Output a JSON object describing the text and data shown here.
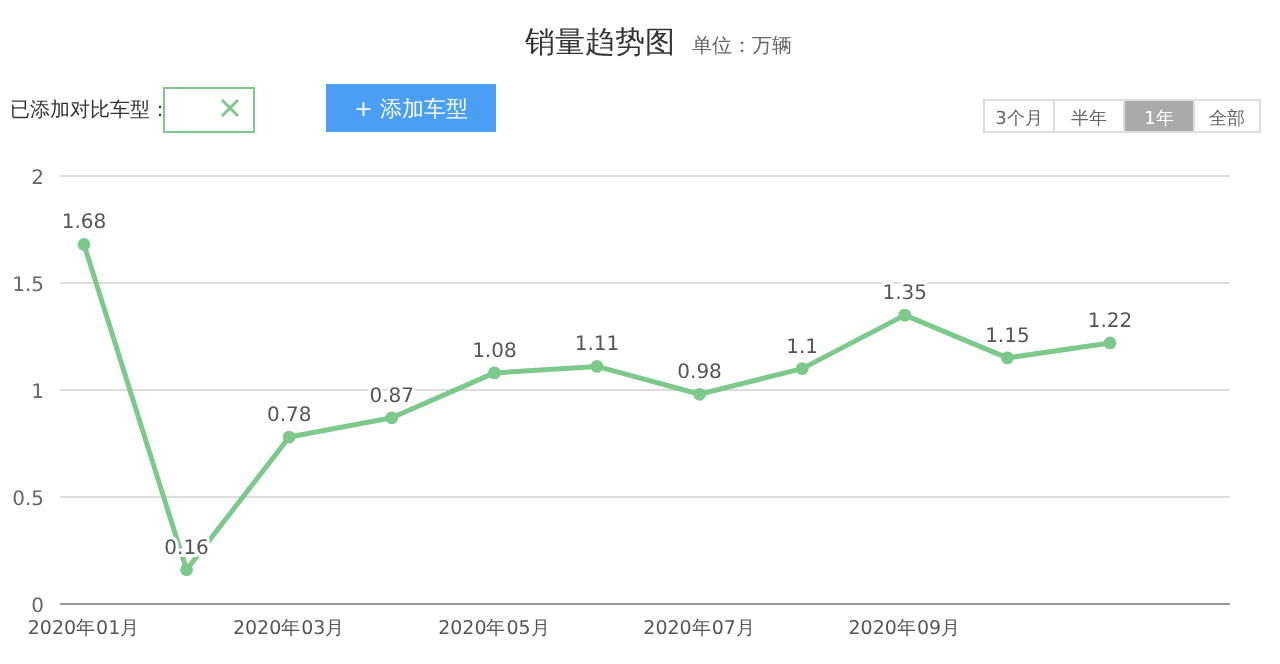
{
  "chart_data": {
    "type": "line",
    "title": "销量趋势图",
    "subtitle": "单位：万辆",
    "categories": [
      "2020年01月",
      null,
      "2020年03月",
      null,
      "2020年05月",
      null,
      "2020年07月",
      null,
      "2020年09月",
      null,
      null
    ],
    "values": [
      1.68,
      0.16,
      0.78,
      0.87,
      1.08,
      1.11,
      0.98,
      1.1,
      1.35,
      1.15,
      1.22
    ],
    "color": "#7cc98b",
    "ylim": [
      0,
      2
    ],
    "yticks": [
      0,
      0.5,
      1,
      1.5,
      2
    ],
    "grid": "y",
    "marker": "circle",
    "line_style": "solid",
    "data_labels": true,
    "annotations": [
      "已添加对比车型：",
      "+ 添加车型",
      "3个月",
      "半年",
      "1年",
      "全部"
    ]
  }
}
